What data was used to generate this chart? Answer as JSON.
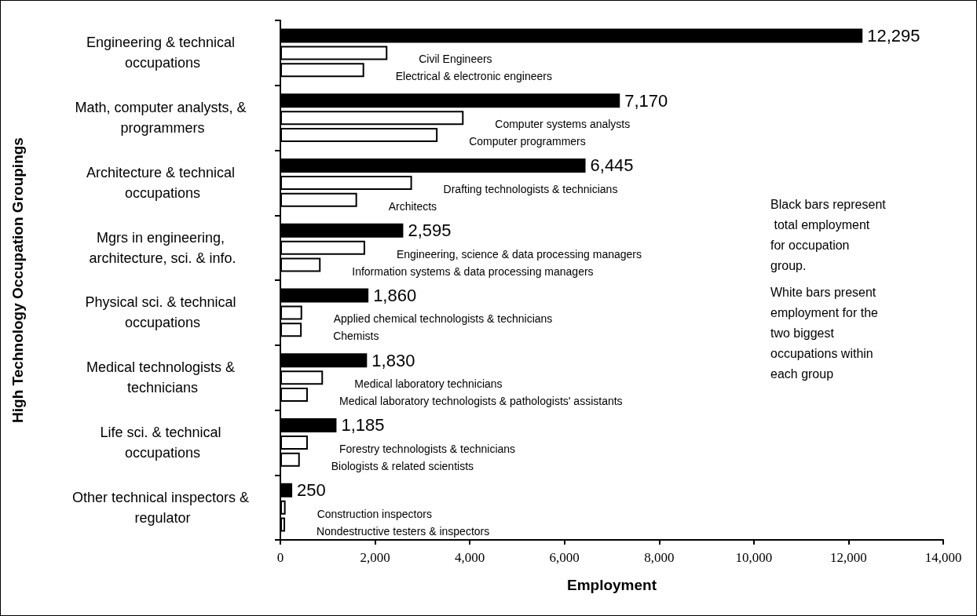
{
  "chart_data": {
    "type": "bar",
    "orientation": "horizontal",
    "xlabel": "Employment",
    "ylabel": "High Technology Occupation Groupings",
    "categories": [
      "Engineering & technical occupations",
      "Math, computer analysts, & programmers",
      "Architecture & technical occupations",
      "Mgrs in engineering, architecture, sci. & info.",
      "Physical sci. & technical occupations",
      "Medical technologists & technicians",
      "Life sci. & technical occupations",
      "Other technical inspectors & regulator"
    ],
    "series": [
      {
        "color": "#000000",
        "values": [
          12295,
          7170,
          6445,
          2595,
          1860,
          1830,
          1185,
          250
        ],
        "value_labels": [
          "12,295",
          "7,170",
          "6,445",
          "2,595",
          "1,860",
          "1,830",
          "1,185",
          "250"
        ]
      },
      {
        "color": "#ffffff",
        "values": [
          2260,
          3870,
          2780,
          1790,
          460,
          900,
          580,
          110
        ],
        "value_labels": [
          "Civil Engineers",
          "Computer systems analysts",
          "Drafting technologists & technicians",
          "Engineering, science & data processing managers",
          "Applied chemical technologists & technicians",
          "Medical laboratory technicians",
          "Forestry technologists & technicians",
          "Construction inspectors"
        ]
      },
      {
        "color": "#ffffff",
        "values": [
          1770,
          3320,
          1620,
          850,
          450,
          580,
          410,
          100
        ],
        "value_labels": [
          "Electrical & electronic engineers",
          "Computer programmers",
          "Architects",
          "Information systems & data processing managers",
          "Chemists",
          "Medical laboratory technologists & pathologists' assistants",
          "Biologists & related scientists",
          "Nondestructive testers & inspectors"
        ]
      }
    ],
    "xlim": [
      0,
      14000
    ],
    "xticks": [
      0,
      {
        "value": 2000,
        "label": "2,000"
      },
      {
        "value": 4000,
        "label": "4,000"
      },
      {
        "value": 6000,
        "label": "6,000"
      },
      {
        "value": 8000,
        "label": "8,000"
      },
      {
        "value": 10000,
        "label": "10,000"
      },
      {
        "value": 12000,
        "label": "12,000"
      },
      {
        "value": 14000,
        "label": "14,000"
      }
    ],
    "annotations": [
      "Black bars represent total employment for occupation group.",
      "White bars present employment for the two biggest occupations within each group"
    ]
  }
}
